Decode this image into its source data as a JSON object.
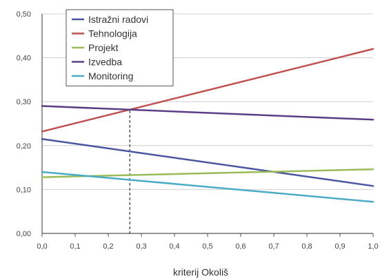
{
  "chart_data": {
    "type": "line",
    "xlabel": "kriterij Okoliš",
    "ylabel": "",
    "xlim": [
      0.0,
      1.0
    ],
    "ylim": [
      0.0,
      0.5
    ],
    "x_ticks": [
      "0,0",
      "0,1",
      "0,2",
      "0,3",
      "0,4",
      "0,5",
      "0,6",
      "0,7",
      "0,8",
      "0,9",
      "1,0"
    ],
    "y_ticks": [
      "0,00",
      "0,10",
      "0,20",
      "0,30",
      "0,40",
      "0,50"
    ],
    "x_tick_values": [
      0.0,
      0.1,
      0.2,
      0.3,
      0.4,
      0.5,
      0.6,
      0.7,
      0.8,
      0.9,
      1.0
    ],
    "y_tick_values": [
      0.0,
      0.1,
      0.2,
      0.3,
      0.4,
      0.5
    ],
    "grid": "horizontal",
    "legend_position": "top-left",
    "reference_line_x": 0.265,
    "series": [
      {
        "name": "Istražni radovi",
        "color": "#4a55a0",
        "x": [
          0.0,
          1.0
        ],
        "y": [
          0.215,
          0.108
        ]
      },
      {
        "name": "Tehnologija",
        "color": "#c0504d",
        "x": [
          0.0,
          1.0
        ],
        "y": [
          0.232,
          0.42
        ]
      },
      {
        "name": "Projekt",
        "color": "#9bbb59",
        "x": [
          0.0,
          1.0
        ],
        "y": [
          0.128,
          0.146
        ]
      },
      {
        "name": "Izvedba",
        "color": "#5b3d86",
        "x": [
          0.0,
          1.0
        ],
        "y": [
          0.29,
          0.259
        ]
      },
      {
        "name": "Monitoring",
        "color": "#4bacc6",
        "x": [
          0.0,
          1.0
        ],
        "y": [
          0.14,
          0.072
        ]
      }
    ]
  }
}
